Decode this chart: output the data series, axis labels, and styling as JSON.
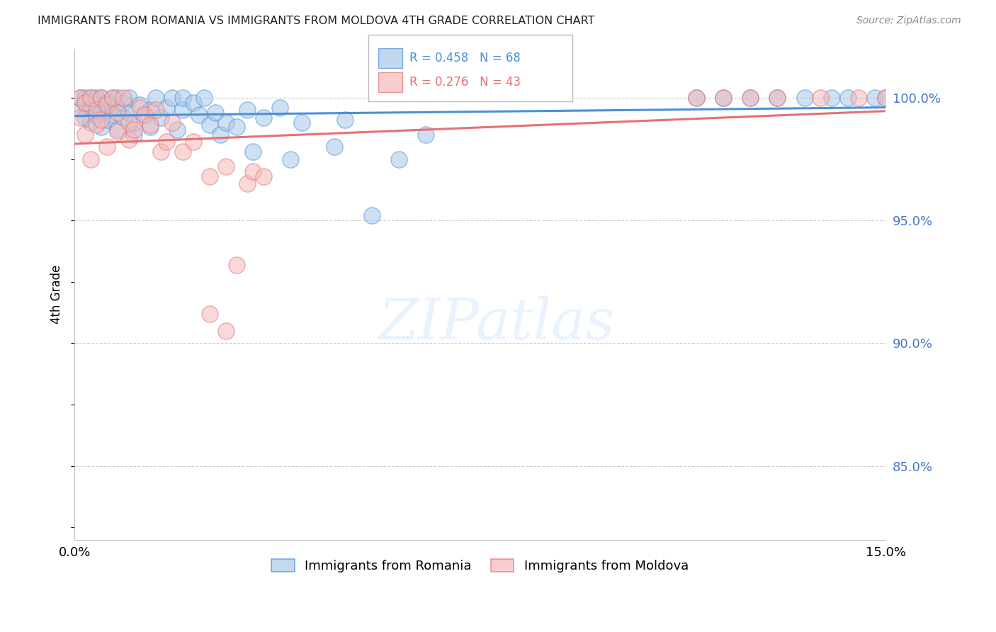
{
  "title": "IMMIGRANTS FROM ROMANIA VS IMMIGRANTS FROM MOLDOVA 4TH GRADE CORRELATION CHART",
  "source": "Source: ZipAtlas.com",
  "ylabel": "4th Grade",
  "xlim": [
    0.0,
    0.15
  ],
  "ylim": [
    82.0,
    102.0
  ],
  "yticks": [
    85.0,
    90.0,
    95.0,
    100.0
  ],
  "romania_R": 0.458,
  "romania_N": 68,
  "moldova_R": 0.276,
  "moldova_N": 43,
  "romania_color": "#a8c8e8",
  "moldova_color": "#f4b8b8",
  "romania_edge_color": "#4a90d9",
  "moldova_edge_color": "#e87070",
  "romania_line_color": "#4a90d9",
  "moldova_line_color": "#e87070",
  "legend_romania": "Immigrants from Romania",
  "legend_moldova": "Immigrants from Moldova",
  "romania_x": [
    0.001,
    0.001,
    0.002,
    0.002,
    0.002,
    0.003,
    0.003,
    0.003,
    0.004,
    0.004,
    0.004,
    0.005,
    0.005,
    0.005,
    0.006,
    0.006,
    0.006,
    0.007,
    0.007,
    0.008,
    0.008,
    0.008,
    0.009,
    0.009,
    0.01,
    0.01,
    0.011,
    0.011,
    0.012,
    0.013,
    0.014,
    0.014,
    0.015,
    0.016,
    0.017,
    0.018,
    0.019,
    0.02,
    0.02,
    0.022,
    0.023,
    0.024,
    0.025,
    0.026,
    0.027,
    0.028,
    0.03,
    0.032,
    0.033,
    0.035,
    0.038,
    0.04,
    0.042,
    0.048,
    0.05,
    0.055,
    0.06,
    0.065,
    0.115,
    0.12,
    0.125,
    0.13,
    0.135,
    0.14,
    0.143,
    0.148,
    0.15,
    0.152
  ],
  "romania_y": [
    99.5,
    100.0,
    99.8,
    100.0,
    99.2,
    99.6,
    100.0,
    99.0,
    99.3,
    99.7,
    100.0,
    98.8,
    99.4,
    100.0,
    99.1,
    99.5,
    99.8,
    100.0,
    99.3,
    98.7,
    99.6,
    100.0,
    99.2,
    99.8,
    99.4,
    100.0,
    98.5,
    99.0,
    99.7,
    99.3,
    98.8,
    99.5,
    100.0,
    99.2,
    99.6,
    100.0,
    98.7,
    99.5,
    100.0,
    99.8,
    99.3,
    100.0,
    98.9,
    99.4,
    98.5,
    99.0,
    98.8,
    99.5,
    97.8,
    99.2,
    99.6,
    97.5,
    99.0,
    98.0,
    99.1,
    95.2,
    97.5,
    98.5,
    100.0,
    100.0,
    100.0,
    100.0,
    100.0,
    100.0,
    100.0,
    100.0,
    100.0,
    100.0
  ],
  "moldova_x": [
    0.001,
    0.001,
    0.002,
    0.002,
    0.003,
    0.003,
    0.004,
    0.004,
    0.005,
    0.005,
    0.006,
    0.006,
    0.007,
    0.008,
    0.008,
    0.009,
    0.01,
    0.01,
    0.011,
    0.012,
    0.013,
    0.014,
    0.015,
    0.016,
    0.017,
    0.018,
    0.02,
    0.022,
    0.025,
    0.028,
    0.03,
    0.032,
    0.033,
    0.035,
    0.025,
    0.028,
    0.115,
    0.12,
    0.125,
    0.13,
    0.138,
    0.145,
    0.15
  ],
  "moldova_y": [
    99.2,
    100.0,
    99.8,
    98.5,
    100.0,
    97.5,
    98.9,
    99.5,
    99.1,
    100.0,
    99.7,
    98.0,
    100.0,
    98.6,
    99.4,
    100.0,
    98.3,
    99.0,
    98.7,
    99.6,
    99.3,
    98.9,
    99.5,
    97.8,
    98.2,
    99.0,
    97.8,
    98.2,
    96.8,
    97.2,
    93.2,
    96.5,
    97.0,
    96.8,
    91.2,
    90.5,
    100.0,
    100.0,
    100.0,
    100.0,
    100.0,
    100.0,
    100.0
  ]
}
